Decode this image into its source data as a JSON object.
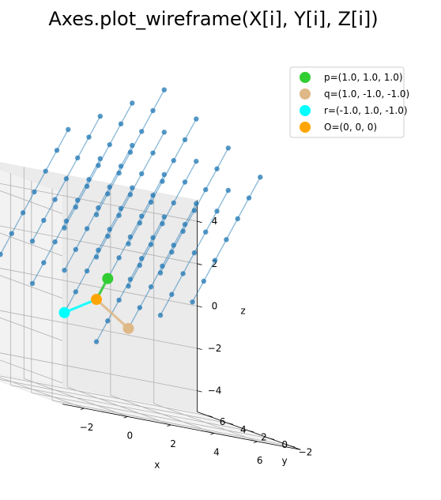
{
  "chart_data": {
    "type": "scatter",
    "title": "Axes.plot_wireframe(X[i], Y[i], Z[i])",
    "xlabel": "x",
    "ylabel": "y",
    "zlabel": "z",
    "xlim": [
      -3,
      8
    ],
    "ylim": [
      -3,
      7
    ],
    "zlim": [
      -5,
      5
    ],
    "xticks": [
      "−2",
      "0",
      "2",
      "4",
      "6"
    ],
    "yticks": [
      "−2",
      "0",
      "2",
      "4",
      "6"
    ],
    "zticks": [
      "−4",
      "−2",
      "0",
      "2",
      "4"
    ],
    "grid": true,
    "legend_position": "top-right",
    "vectors": [
      {
        "name": "p=(1.0, 1.0, 1.0)",
        "point": [
          1.0,
          1.0,
          1.0
        ],
        "color": "#32cd32"
      },
      {
        "name": "q=(1.0, -1.0, -1.0)",
        "point": [
          1.0,
          -1.0,
          -1.0
        ],
        "color": "#deb887"
      },
      {
        "name": "r=(-1.0, 1.0, -1.0)",
        "point": [
          -1.0,
          1.0,
          -1.0
        ],
        "color": "#00ffff"
      },
      {
        "name": "O=(0, 0, 0)",
        "point": [
          0,
          0,
          0
        ],
        "color": "#ffa500"
      }
    ],
    "lattice": {
      "description_color": "#1f77b4",
      "i_range": [
        0,
        6
      ],
      "j_range": [
        -2,
        1
      ],
      "k_range": [
        -2,
        1
      ]
    }
  }
}
